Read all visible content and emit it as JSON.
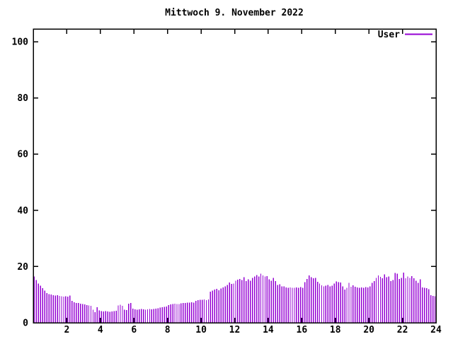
{
  "title": "Mittwoch 9. November 2022",
  "legend": {
    "label": "User"
  },
  "colors": {
    "background": "#ffffff",
    "series": "#9400d3",
    "axis": "#000000",
    "text": "#000000"
  },
  "chart_data": {
    "type": "bar",
    "style": "impulses",
    "title": "Mittwoch 9. November 2022",
    "xlabel": "",
    "ylabel": "",
    "xlim": [
      0,
      24
    ],
    "ylim": [
      0,
      100
    ],
    "xticks": [
      2,
      4,
      6,
      8,
      10,
      12,
      14,
      16,
      18,
      20,
      22,
      24
    ],
    "yticks": [
      0,
      20,
      40,
      60,
      80,
      100
    ],
    "grid": false,
    "legend_position": "top-right-inside",
    "series": [
      {
        "name": "User",
        "color": "#9400d3",
        "x_start": 0.0625,
        "x_step": 0.125,
        "values": [
          16.5,
          15.2,
          14.0,
          13.2,
          12.3,
          11.4,
          10.6,
          10.2,
          10.0,
          9.8,
          9.7,
          9.8,
          9.6,
          9.4,
          9.3,
          9.4,
          9.3,
          9.7,
          7.8,
          7.3,
          7.0,
          7.0,
          6.8,
          6.6,
          6.5,
          6.3,
          6.2,
          6.0,
          4.6,
          3.8,
          5.5,
          4.4,
          4.2,
          4.0,
          4.1,
          4.0,
          3.9,
          4.0,
          4.1,
          4.3,
          6.2,
          6.4,
          6.0,
          4.6,
          4.5,
          6.8,
          7.0,
          5.0,
          4.8,
          4.7,
          4.8,
          4.9,
          4.8,
          4.7,
          4.8,
          4.9,
          4.8,
          4.9,
          5.0,
          5.2,
          5.4,
          5.5,
          5.6,
          5.8,
          6.3,
          6.5,
          6.6,
          6.8,
          6.6,
          6.7,
          6.9,
          7.0,
          7.0,
          7.1,
          7.2,
          7.3,
          7.2,
          7.8,
          8.0,
          8.2,
          8.2,
          8.3,
          8.1,
          8.3,
          11.0,
          11.4,
          11.8,
          12.0,
          11.5,
          12.2,
          12.6,
          13.0,
          13.5,
          14.3,
          13.8,
          14.0,
          15.0,
          15.3,
          15.6,
          15.2,
          16.2,
          14.8,
          15.4,
          15.0,
          16.0,
          16.5,
          17.0,
          16.4,
          17.5,
          16.8,
          16.5,
          16.6,
          15.5,
          15.0,
          15.9,
          14.8,
          13.5,
          13.7,
          13.0,
          12.9,
          12.6,
          12.4,
          12.6,
          12.5,
          12.4,
          12.6,
          12.5,
          12.7,
          12.5,
          14.5,
          15.6,
          16.8,
          16.2,
          15.8,
          16.0,
          14.6,
          14.0,
          13.3,
          13.0,
          13.2,
          13.4,
          13.0,
          13.2,
          14.0,
          14.7,
          14.5,
          14.3,
          13.0,
          11.8,
          12.4,
          14.2,
          12.8,
          13.3,
          12.8,
          12.6,
          12.4,
          12.6,
          12.5,
          12.7,
          12.6,
          13.0,
          14.2,
          14.8,
          16.0,
          16.8,
          16.3,
          15.8,
          17.2,
          16.2,
          16.5,
          14.8,
          15.2,
          17.7,
          17.5,
          15.6,
          16.0,
          17.8,
          15.8,
          16.4,
          16.0,
          16.6,
          15.8,
          15.0,
          14.2,
          15.4,
          12.6,
          12.5,
          12.3,
          11.9,
          9.8,
          9.5,
          9.4
        ]
      }
    ]
  }
}
